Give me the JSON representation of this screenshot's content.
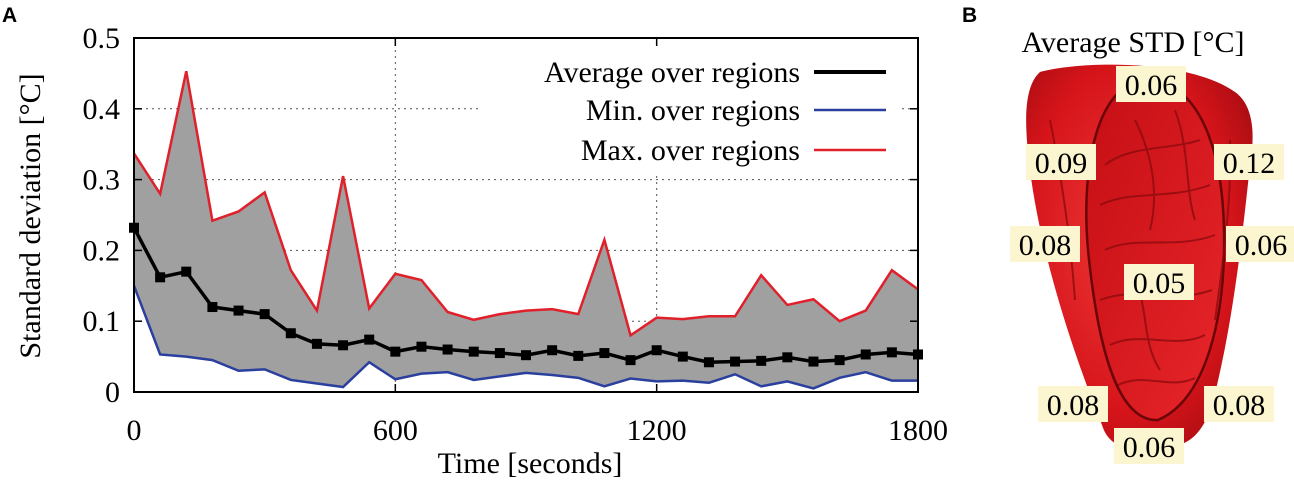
{
  "panels": {
    "a_letter": "A",
    "b_letter": "B"
  },
  "chart_data": [
    {
      "type": "line",
      "title": "",
      "xlabel": "Time [seconds]",
      "ylabel": "Standard deviation [°C]",
      "xlim": [
        0,
        1800
      ],
      "ylim": [
        0,
        0.5
      ],
      "xticks": [
        0,
        600,
        1200,
        1800
      ],
      "xtick_labels": [
        "0",
        "600",
        "1200",
        "1800"
      ],
      "yticks": [
        0,
        0.1,
        0.2,
        0.3,
        0.4,
        0.5
      ],
      "ytick_labels": [
        "0",
        "0.1",
        "0.2",
        "0.3",
        "0.4",
        "0.5"
      ],
      "grid": "dotted",
      "legend_position": "top-right",
      "band_fill": "#a0a0a0",
      "x": [
        0,
        60,
        120,
        180,
        240,
        300,
        360,
        420,
        480,
        540,
        600,
        660,
        720,
        780,
        840,
        900,
        960,
        1020,
        1080,
        1140,
        1200,
        1260,
        1320,
        1380,
        1440,
        1500,
        1560,
        1620,
        1680,
        1740,
        1800
      ],
      "series": [
        {
          "name": "Average over regions",
          "color": "#000000",
          "markers": true,
          "values": [
            0.232,
            0.162,
            0.17,
            0.12,
            0.115,
            0.11,
            0.083,
            0.068,
            0.066,
            0.074,
            0.057,
            0.064,
            0.06,
            0.057,
            0.055,
            0.052,
            0.059,
            0.051,
            0.055,
            0.045,
            0.059,
            0.05,
            0.042,
            0.043,
            0.044,
            0.049,
            0.043,
            0.045,
            0.053,
            0.056,
            0.053
          ]
        },
        {
          "name": "Min. over regions",
          "color": "#2b3f9e",
          "markers": false,
          "values": [
            0.15,
            0.053,
            0.05,
            0.045,
            0.03,
            0.032,
            0.017,
            0.012,
            0.007,
            0.042,
            0.018,
            0.026,
            0.028,
            0.017,
            0.022,
            0.027,
            0.024,
            0.02,
            0.008,
            0.019,
            0.015,
            0.016,
            0.013,
            0.025,
            0.008,
            0.015,
            0.005,
            0.02,
            0.028,
            0.016,
            0.016
          ]
        },
        {
          "name": "Max. over regions",
          "color": "#e0202a",
          "markers": false,
          "values": [
            0.337,
            0.28,
            0.453,
            0.242,
            0.255,
            0.282,
            0.172,
            0.115,
            0.305,
            0.118,
            0.167,
            0.158,
            0.113,
            0.102,
            0.11,
            0.115,
            0.117,
            0.11,
            0.215,
            0.08,
            0.105,
            0.103,
            0.107,
            0.107,
            0.165,
            0.123,
            0.131,
            0.1,
            0.115,
            0.172,
            0.145
          ]
        }
      ]
    }
  ],
  "panel_b": {
    "title": "Average STD [°C]",
    "organ_color": "#e8191c",
    "regions": [
      {
        "label": "0.06",
        "position": "top"
      },
      {
        "label": "0.09",
        "position": "upper-left"
      },
      {
        "label": "0.12",
        "position": "upper-right"
      },
      {
        "label": "0.08",
        "position": "middle-left"
      },
      {
        "label": "0.06",
        "position": "middle-right"
      },
      {
        "label": "0.05",
        "position": "center"
      },
      {
        "label": "0.08",
        "position": "lower-left"
      },
      {
        "label": "0.08",
        "position": "lower-right"
      },
      {
        "label": "0.06",
        "position": "bottom"
      }
    ]
  }
}
